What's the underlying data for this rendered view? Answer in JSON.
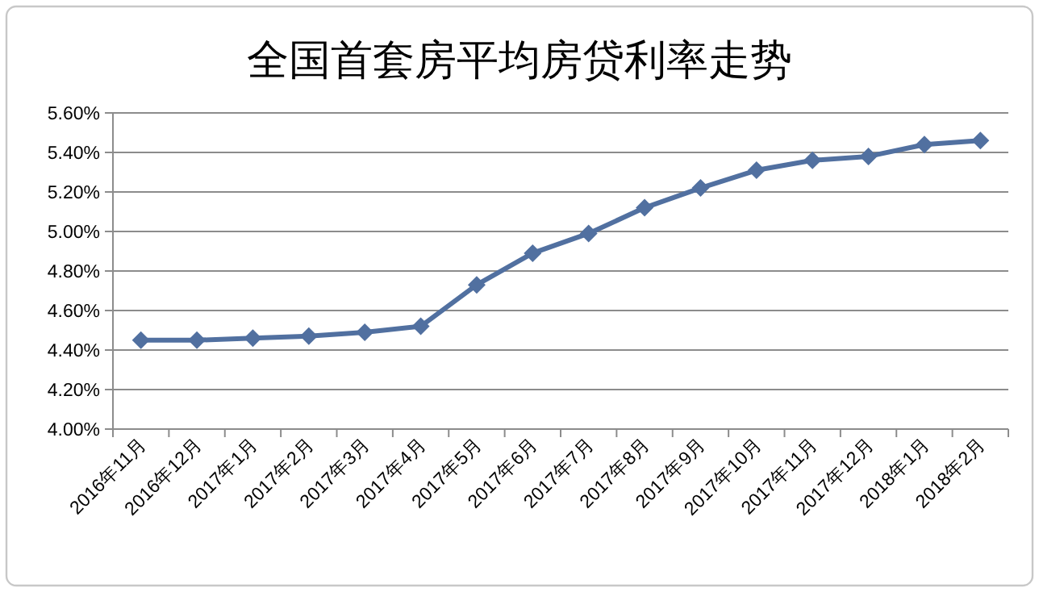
{
  "chart_data": {
    "type": "line",
    "title": "全国首套房平均房贷利率走势",
    "categories": [
      "2016年11月",
      "2016年12月",
      "2017年1月",
      "2017年2月",
      "2017年3月",
      "2017年4月",
      "2017年5月",
      "2017年6月",
      "2017年7月",
      "2017年8月",
      "2017年9月",
      "2017年10月",
      "2017年11月",
      "2017年12月",
      "2018年1月",
      "2018年2月"
    ],
    "series": [
      {
        "color": "#5170a0",
        "values": [
          4.45,
          4.45,
          4.46,
          4.47,
          4.49,
          4.52,
          4.73,
          4.89,
          4.99,
          5.12,
          5.22,
          5.31,
          5.36,
          5.38,
          5.44,
          5.46
        ]
      }
    ],
    "ylim": [
      4.0,
      5.6
    ],
    "yticks": [
      {
        "value": 4.0,
        "label": "4.00%"
      },
      {
        "value": 4.2,
        "label": "4.20%"
      },
      {
        "value": 4.4,
        "label": "4.40%"
      },
      {
        "value": 4.6,
        "label": "4.60%"
      },
      {
        "value": 4.8,
        "label": "4.80%"
      },
      {
        "value": 5.0,
        "label": "5.00%"
      },
      {
        "value": 5.2,
        "label": "5.20%"
      },
      {
        "value": 5.4,
        "label": "5.40%"
      },
      {
        "value": 5.6,
        "label": "5.60%"
      }
    ],
    "grid": "y",
    "marker": "diamond",
    "line_style": "solid"
  }
}
